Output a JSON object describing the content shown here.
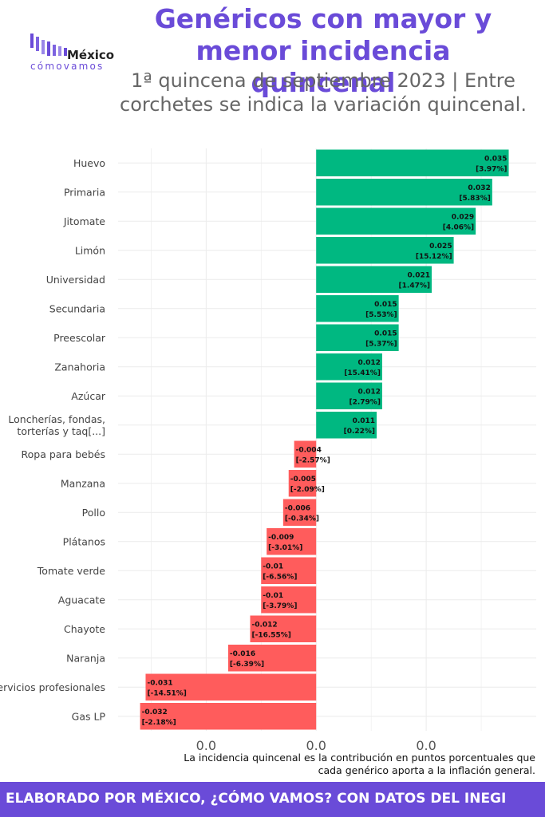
{
  "title": "Genéricos con mayor y menor incidencia quincenal",
  "subtitle": "1ª quincena de septiembre 2023 | Entre corchetes se indica la variación quincenal.",
  "logo": {
    "main": "México",
    "sub": "cómovamos"
  },
  "caption": "La incidencia quincenal es la contribución en puntos porcentuales que cada genérico aporta a la inflación general.",
  "footer": "ELABORADO POR MÉXICO, ¿CÓMO VAMOS? CON DATOS DEL INEGI",
  "colors": {
    "positive": "#00b881",
    "negative": "#ff5c5c",
    "accent": "#6a4bd8"
  },
  "chart_data": {
    "type": "bar",
    "orientation": "horizontal",
    "grid": true,
    "x_tick_labels": [
      "0.0",
      "0.0",
      "0.0"
    ],
    "x_tick_values": [
      -0.02,
      0.0,
      0.02
    ],
    "xlim": [
      -0.036,
      0.04
    ],
    "categories": [
      "Huevo",
      "Primaria",
      "Jitomate",
      "Limón",
      "Universidad",
      "Secundaria",
      "Preescolar",
      "Zanahoria",
      "Azúcar",
      "Loncherías, fondas, torterías y taq[...]",
      "Ropa para bebés",
      "Manzana",
      "Pollo",
      "Plátanos",
      "Tomate verde",
      "Aguacate",
      "Chayote",
      "Naranja",
      "Servicios profesionales",
      "Gas LP"
    ],
    "values": [
      0.035,
      0.032,
      0.029,
      0.025,
      0.021,
      0.015,
      0.015,
      0.012,
      0.012,
      0.011,
      -0.004,
      -0.005,
      -0.006,
      -0.009,
      -0.01,
      -0.01,
      -0.012,
      -0.016,
      -0.031,
      -0.032
    ],
    "value_labels": [
      "0.035",
      "0.032",
      "0.029",
      "0.025",
      "0.021",
      "0.015",
      "0.015",
      "0.012",
      "0.012",
      "0.011",
      "-0.004",
      "-0.005",
      "-0.006",
      "-0.009",
      "-0.01",
      "-0.01",
      "-0.012",
      "-0.016",
      "-0.031",
      "-0.032"
    ],
    "variation_labels": [
      "[3.97%]",
      "[5.83%]",
      "[4.06%]",
      "[15.12%]",
      "[1.47%]",
      "[5.53%]",
      "[5.37%]",
      "[15.41%]",
      "[2.79%]",
      "[0.22%]",
      "[-2.57%]",
      "[-2.09%]",
      "[-0.34%]",
      "[-3.01%]",
      "[-6.56%]",
      "[-3.79%]",
      "[-16.55%]",
      "[-6.39%]",
      "[-14.51%]",
      "[-2.18%]"
    ]
  }
}
